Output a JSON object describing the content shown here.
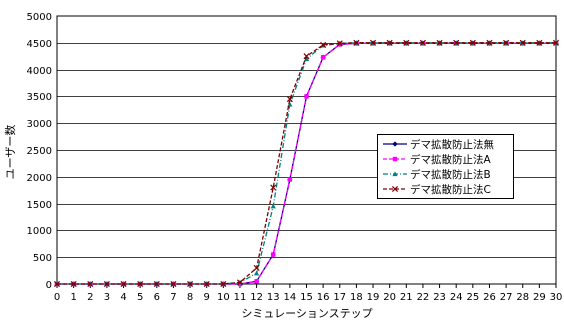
{
  "chart_data": {
    "type": "line",
    "xlabel": "シミュレーションステップ",
    "ylabel": "ユーザー数",
    "x": [
      0,
      1,
      2,
      3,
      4,
      5,
      6,
      7,
      8,
      9,
      10,
      11,
      12,
      13,
      14,
      15,
      16,
      17,
      18,
      19,
      20,
      21,
      22,
      23,
      24,
      25,
      26,
      27,
      28,
      29,
      30
    ],
    "xlim": [
      0,
      30
    ],
    "ylim": [
      0,
      5000
    ],
    "yticks": [
      0,
      500,
      1000,
      1500,
      2000,
      2500,
      3000,
      3500,
      4000,
      4500,
      5000
    ],
    "grid": true,
    "legend": "right",
    "series": [
      {
        "name": "デマ拡散防止法無",
        "color": "#000080",
        "marker": "diamond",
        "dash": "solid",
        "values": [
          0,
          0,
          0,
          0,
          0,
          0,
          0,
          0,
          0,
          0,
          0,
          0,
          50,
          550,
          1950,
          3500,
          4230,
          4470,
          4490,
          4490,
          4490,
          4490,
          4490,
          4490,
          4490,
          4490,
          4490,
          4490,
          4490,
          4490,
          4490
        ]
      },
      {
        "name": "デマ拡散防止法A",
        "color": "#ff00ff",
        "marker": "square",
        "dash": "dashed",
        "values": [
          0,
          0,
          0,
          0,
          0,
          0,
          0,
          0,
          0,
          0,
          0,
          0,
          50,
          550,
          1950,
          3500,
          4230,
          4470,
          4490,
          4490,
          4490,
          4490,
          4490,
          4490,
          4490,
          4490,
          4490,
          4490,
          4490,
          4490,
          4490
        ]
      },
      {
        "name": "デマ拡散防止法B",
        "color": "#008080",
        "marker": "triangle",
        "dash": "dashdot",
        "values": [
          0,
          0,
          0,
          0,
          0,
          0,
          0,
          0,
          0,
          0,
          0,
          30,
          200,
          1450,
          3350,
          4200,
          4450,
          4490,
          4500,
          4500,
          4500,
          4500,
          4500,
          4500,
          4500,
          4500,
          4500,
          4500,
          4500,
          4500,
          4500
        ]
      },
      {
        "name": "デマ拡散防止法C",
        "color": "#800000",
        "marker": "x",
        "dash": "dashed",
        "values": [
          0,
          0,
          0,
          0,
          0,
          0,
          0,
          0,
          0,
          0,
          0,
          30,
          300,
          1800,
          3450,
          4250,
          4460,
          4490,
          4500,
          4500,
          4500,
          4500,
          4500,
          4500,
          4500,
          4500,
          4500,
          4500,
          4500,
          4500,
          4500
        ]
      }
    ]
  }
}
